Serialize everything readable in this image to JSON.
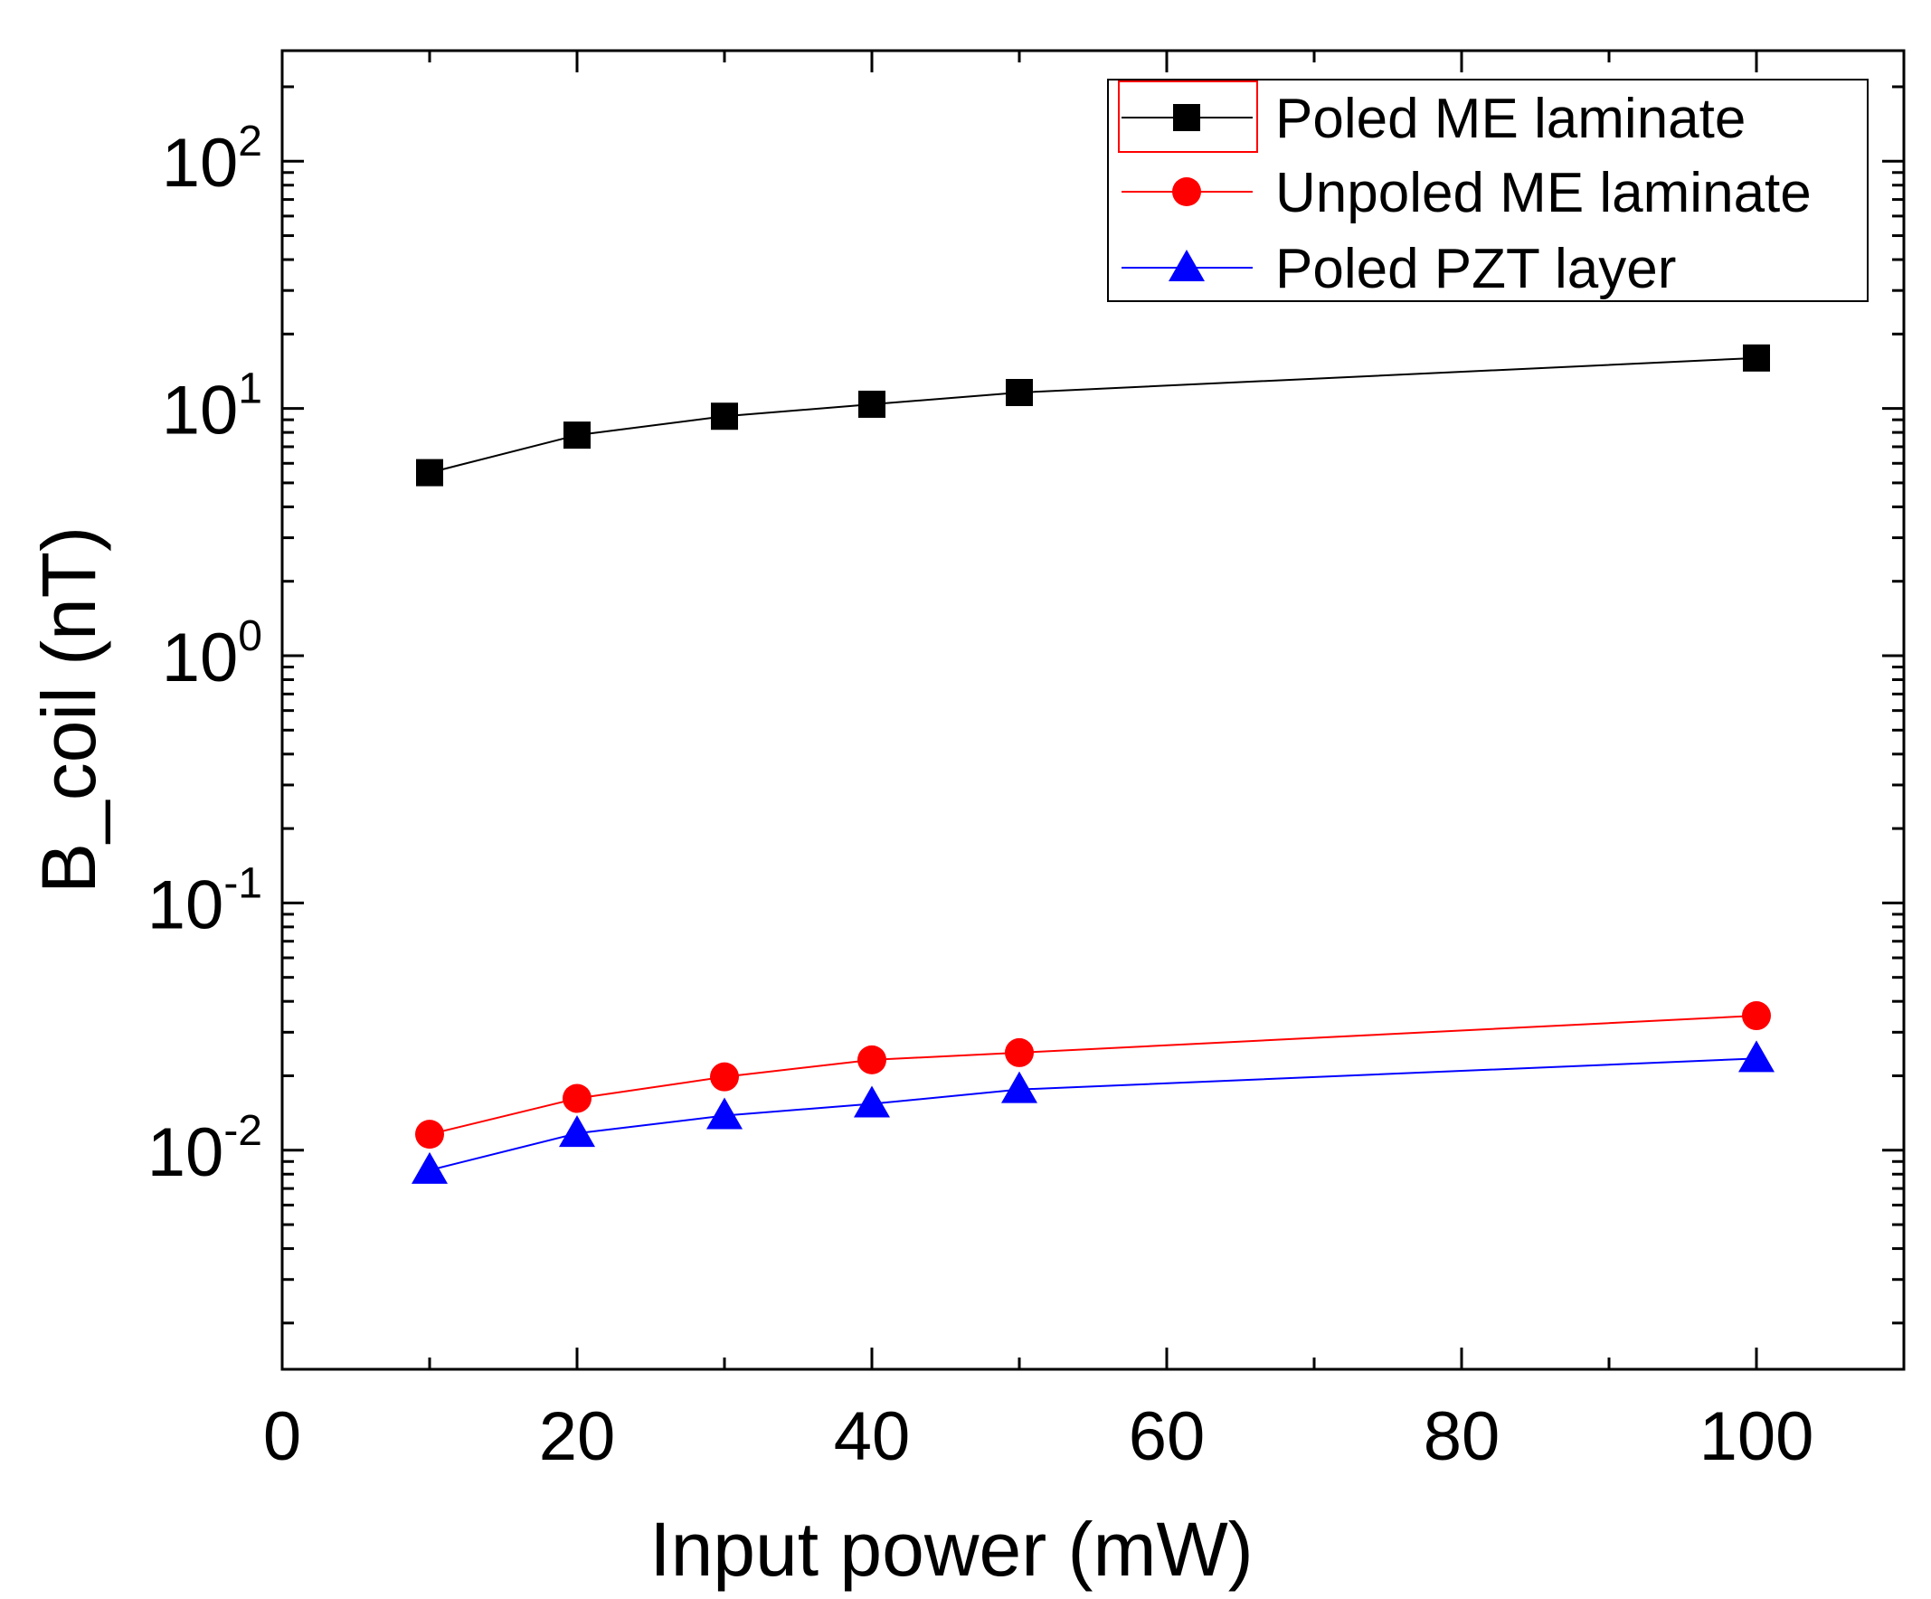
{
  "chart_data": {
    "type": "line",
    "title": "",
    "xlabel": "Input power (mW)",
    "ylabel": "B_coil (nT)",
    "x_scale": "linear",
    "y_scale": "log",
    "xlim": [
      0,
      110
    ],
    "ylim": [
      0.0013,
      280
    ],
    "x_ticks": [
      0,
      20,
      40,
      60,
      80,
      100
    ],
    "x_tick_labels": [
      "0",
      "20",
      "40",
      "60",
      "80",
      "100"
    ],
    "y_ticks": [
      {
        "value": 0.01,
        "base": "10",
        "exp": "-2"
      },
      {
        "value": 0.1,
        "base": "10",
        "exp": "-1"
      },
      {
        "value": 1,
        "base": "10",
        "exp": "0"
      },
      {
        "value": 10,
        "base": "10",
        "exp": "1"
      },
      {
        "value": 100,
        "base": "10",
        "exp": "2"
      }
    ],
    "legend_position": "top-right",
    "series": [
      {
        "name": "Poled ME laminate",
        "color": "#000000",
        "marker": "square",
        "x": [
          10,
          20,
          30,
          40,
          50,
          100
        ],
        "y": [
          5.5,
          7.8,
          9.3,
          10.4,
          11.6,
          16.0
        ]
      },
      {
        "name": "Unpoled ME laminate",
        "color": "#ff0000",
        "marker": "circle",
        "x": [
          10,
          20,
          30,
          40,
          50,
          100
        ],
        "y": [
          0.0116,
          0.0162,
          0.0198,
          0.0232,
          0.0248,
          0.035
        ]
      },
      {
        "name": "Poled PZT layer",
        "color": "#0000ff",
        "marker": "triangle",
        "x": [
          10,
          20,
          30,
          40,
          50,
          100
        ],
        "y": [
          0.0083,
          0.0117,
          0.0138,
          0.0154,
          0.0176,
          0.0235
        ]
      }
    ]
  }
}
